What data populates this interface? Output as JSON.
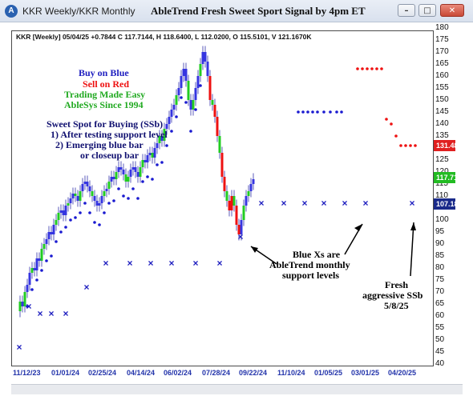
{
  "window": {
    "title": "KKR Weekly/KKR Monthly",
    "chart_title": "AbleTrend Fresh Sweet Sport Signal by 4pm ET"
  },
  "header": {
    "ohlc": "KKR [Weekly] 05/04/25 +0.7844 C 117.7144, H 118.6400, L 112.0200, O 115.5101, V 121.1670K"
  },
  "legend": {
    "line1": "Buy on Blue",
    "line2": "Sell on Red",
    "line3": "Trading Made Easy",
    "line4": "AbleSys Since 1994",
    "colors": {
      "blue": "#2020c0",
      "red": "#ee1111",
      "green": "#22aa22"
    }
  },
  "sweet_spot": {
    "title": "Sweet Spot for Buying (SSb)",
    "item1": "1) After testing support level",
    "item2": "2) Emerging blue bar",
    "item3": "or closeup bar"
  },
  "annotation_x": {
    "line1": "Blue Xs are",
    "line2": "AbleTrend monthly",
    "line3": "support levels"
  },
  "annotation_fresh": {
    "line1": "Fresh",
    "line2": "aggressive SSb",
    "line3": "5/8/25"
  },
  "price_tags": {
    "red": "131.488",
    "green": "117.714",
    "blue": "107.184"
  },
  "chart_data": {
    "type": "candlestick",
    "x_tick_labels": [
      "11/12/23",
      "01/01/24",
      "02/25/24",
      "04/14/24",
      "06/02/24",
      "07/28/24",
      "09/22/24",
      "11/10/24",
      "01/05/25",
      "03/01/25",
      "04/20/25"
    ],
    "y_tick_labels": [
      "40",
      "45",
      "50",
      "55",
      "60",
      "65",
      "70",
      "75",
      "80",
      "85",
      "90",
      "95",
      "100",
      "105",
      "110",
      "115",
      "120",
      "125",
      "130",
      "135",
      "140",
      "145",
      "150",
      "155",
      "160",
      "165",
      "170",
      "175",
      "180"
    ],
    "ylim": [
      40,
      180
    ]
  }
}
